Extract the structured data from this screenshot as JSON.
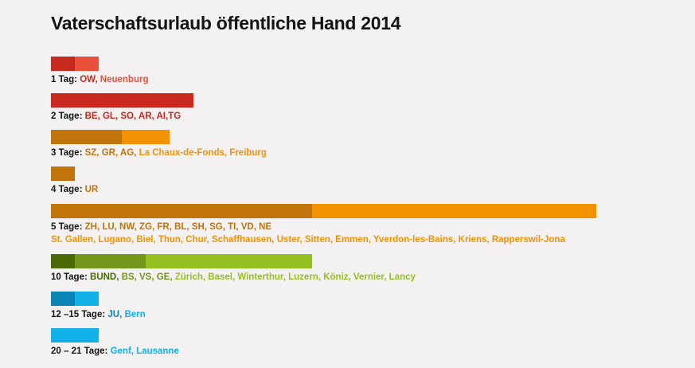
{
  "chart_data": {
    "type": "bar",
    "title": "Vaterschaftsurlaub öffentliche Hand 2014",
    "groups": [
      {
        "prefix": "1 Tag:",
        "segments": [
          {
            "value": 1,
            "color": "#c8281d",
            "text": "OW,"
          },
          {
            "value": 1,
            "color": "#e8503a",
            "text": "Neuenburg"
          }
        ]
      },
      {
        "prefix": "2 Tage:",
        "segments": [
          {
            "value": 6,
            "color": "#c8281d",
            "text": "BE, GL, SO, AR, AI,TG"
          }
        ]
      },
      {
        "prefix": "3 Tage:",
        "segments": [
          {
            "value": 3,
            "color": "#c0740a",
            "text": "SZ, GR, AG,"
          },
          {
            "value": 2,
            "color": "#f39200",
            "text": "La Chaux-de-Fonds, Freiburg"
          }
        ]
      },
      {
        "prefix": "4 Tage:",
        "segments": [
          {
            "value": 1,
            "color": "#c0740a",
            "text": "UR"
          }
        ]
      },
      {
        "prefix": "5 Tage:",
        "segments": [
          {
            "value": 11,
            "color": "#c0740a",
            "text": "ZH, LU, NW, ZG, FR, BL, SH, SG, TI, VD, NE"
          },
          {
            "value": 12,
            "color": "#f39200",
            "text": "St. Gallen, Lugano, Biel, Thun, Chur, Schaffhausen, Uster, Sitten, Emmen, Yverdon-les-Bains, Kriens, Rapperswil-Jona",
            "newline": true
          }
        ]
      },
      {
        "prefix": "10 Tage:",
        "segments": [
          {
            "value": 1,
            "color": "#4a6a08",
            "text": "BUND,"
          },
          {
            "value": 3,
            "color": "#74961a",
            "text": "BS, VS, GE,"
          },
          {
            "value": 7,
            "color": "#94c11f",
            "text": "Zürich, Basel, Winterthur, Luzern, Köniz, Vernier, Lancy"
          }
        ]
      },
      {
        "prefix": "12 –15 Tage:",
        "segments": [
          {
            "value": 1,
            "color": "#0a83b5",
            "text": "JU,"
          },
          {
            "value": 1,
            "color": "#12b2e8",
            "text": "Bern"
          }
        ]
      },
      {
        "prefix": "20 – 21 Tage:",
        "segments": [
          {
            "value": 2,
            "color": "#12b2e8",
            "text": "Genf, Lausanne"
          }
        ]
      }
    ]
  }
}
